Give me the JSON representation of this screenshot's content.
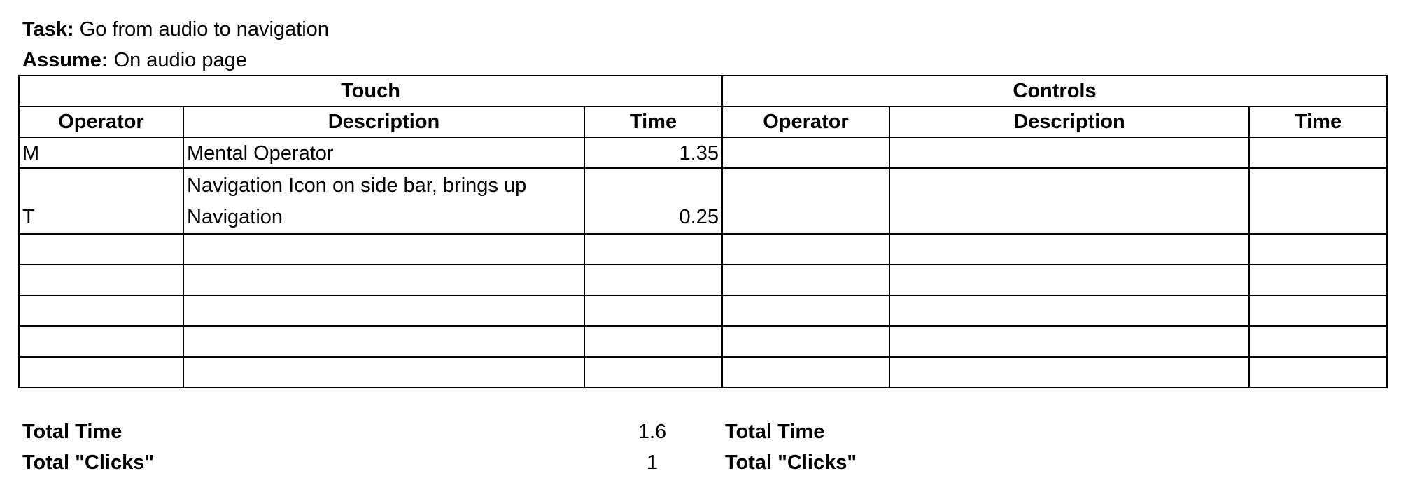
{
  "header": {
    "task_label": "Task:",
    "task_text": "Go from audio to navigation",
    "assume_label": "Assume:",
    "assume_text": "On audio page"
  },
  "table": {
    "touch_title": "Touch",
    "controls_title": "Controls",
    "columns": {
      "operator": "Operator",
      "description": "Description",
      "time": "Time"
    },
    "touch_rows": [
      {
        "operator": "M",
        "description": "Mental Operator",
        "time": "1.35"
      },
      {
        "operator": "T",
        "description": "Navigation Icon on side bar, brings up Navigation",
        "time": "0.25"
      }
    ]
  },
  "totals": {
    "total_time_label": "Total Time",
    "total_clicks_label": "Total \"Clicks\"",
    "touch_total_time": "1.6",
    "touch_total_clicks": "1"
  }
}
